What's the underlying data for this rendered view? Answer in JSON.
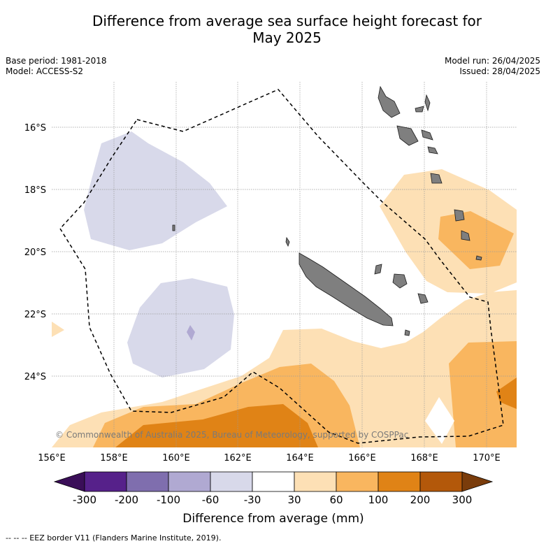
{
  "title_line1": "Difference from average sea surface height forecast for",
  "title_line2": "May 2025",
  "meta_left": [
    "Base period: 1981-2018",
    "Model: ACCESS-S2"
  ],
  "meta_right": [
    "Model run: 26/04/2025",
    "Issued: 28/04/2025"
  ],
  "lat_labels": [
    "16°S",
    "18°S",
    "20°S",
    "22°S",
    "24°S"
  ],
  "lon_labels": [
    "156°E",
    "158°E",
    "160°E",
    "162°E",
    "164°E",
    "166°E",
    "168°E",
    "170°E"
  ],
  "copyright": "© Commonwealth of Australia 2025, Bureau of Meteorology, supported by COSPPac",
  "colorbar": {
    "title": "Difference from average (mm)",
    "ticks": [
      "-300",
      "-200",
      "-100",
      "-60",
      "-30",
      "30",
      "60",
      "100",
      "200",
      "300"
    ],
    "colors": [
      "#3a0e58",
      "#56218a",
      "#7f6eae",
      "#b0a9d2",
      "#d8d9ea",
      "#ffffff",
      "#fde0b5",
      "#f9b65f",
      "#e08316",
      "#b3580a",
      "#7a3c0b"
    ]
  },
  "footnote": "-- -- -- EEZ border V11 (Flanders Marine Institute, 2019).",
  "map": {
    "grid": true,
    "colors": {
      "land": "#7f7f7f",
      "grid": "#9a9a9a",
      "eez": "#000000"
    }
  }
}
